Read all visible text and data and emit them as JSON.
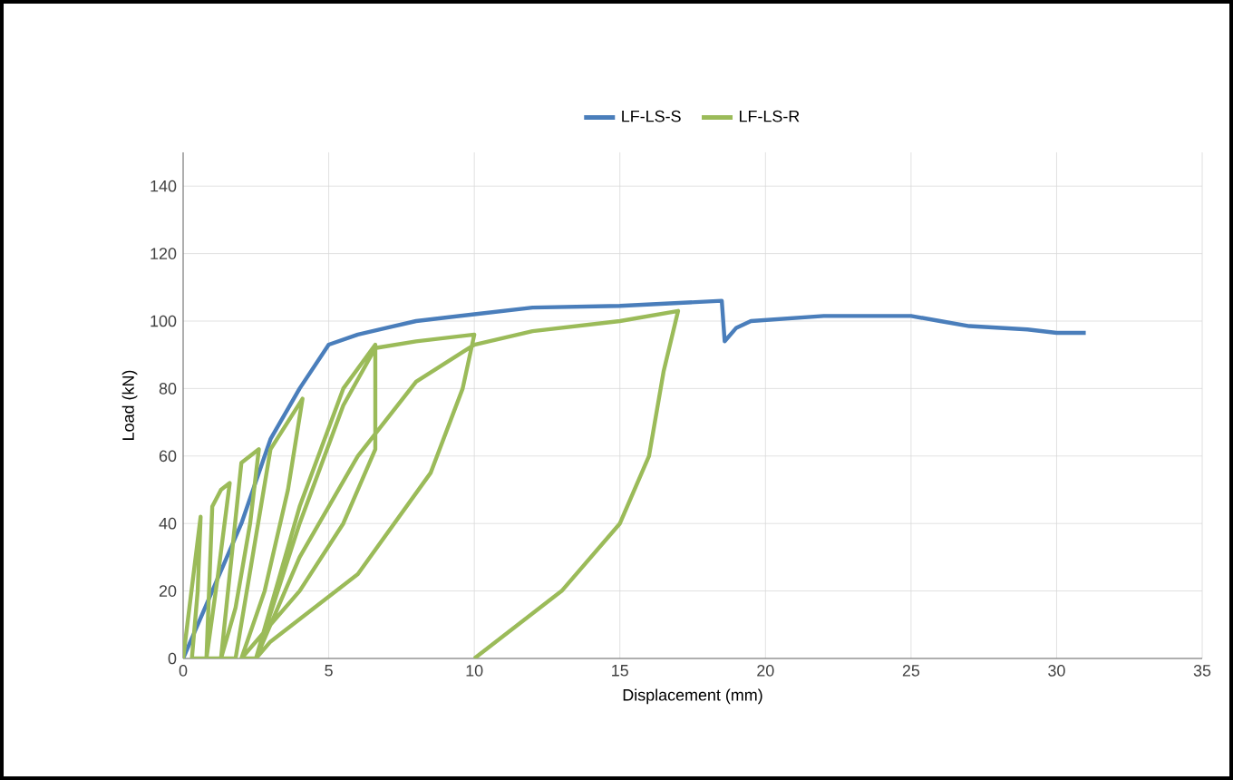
{
  "chart_data": {
    "type": "line",
    "xlabel": "Displacement (mm)",
    "ylabel": "Load (kN)",
    "xlim": [
      0,
      35
    ],
    "ylim": [
      0,
      150
    ],
    "xticks": [
      0,
      5,
      10,
      15,
      20,
      25,
      30,
      35
    ],
    "yticks": [
      0,
      20,
      40,
      60,
      80,
      100,
      120,
      140
    ],
    "grid": true,
    "legend": "top",
    "marker": "none",
    "line_style": "solid",
    "series": [
      {
        "name": "LF-LS-S",
        "color": "#4a7ebb",
        "x": [
          0,
          1,
          2,
          3,
          4,
          5,
          6,
          7,
          8,
          10,
          12,
          15,
          18.5,
          18.6,
          19,
          19.5,
          22,
          25,
          26,
          27,
          29,
          30,
          31
        ],
        "values": [
          0,
          20,
          40,
          65,
          80,
          93,
          96,
          98,
          100,
          102,
          104,
          104.5,
          106,
          94,
          98,
          100,
          101.5,
          101.5,
          100,
          98.5,
          97.5,
          96.5,
          96.5
        ]
      },
      {
        "name": "LF-LS-R",
        "color": "#9bbb59",
        "x": [
          0,
          0.6,
          0.5,
          0.3,
          0.8,
          1.0,
          1.3,
          1.6,
          1.2,
          0.8,
          1.3,
          2.0,
          2.6,
          2.3,
          1.8,
          1.3,
          1.8,
          3.0,
          4.1,
          3.6,
          2.8,
          2.0,
          2.5,
          4,
          5.5,
          6.6,
          6.6,
          5.5,
          4,
          2,
          2.5,
          4,
          5.5,
          6.6,
          8,
          10,
          9.6,
          8.5,
          6,
          3,
          2.5,
          4,
          6,
          8,
          10,
          12,
          15,
          17,
          16.5,
          16,
          15,
          13,
          10
        ],
        "values": [
          0,
          42,
          20,
          0,
          0,
          45,
          50,
          52,
          25,
          0,
          0,
          58,
          62,
          40,
          15,
          0,
          0,
          62,
          77,
          50,
          20,
          0,
          0,
          45,
          80,
          93,
          62,
          40,
          20,
          0,
          0,
          40,
          75,
          92,
          94,
          96,
          80,
          55,
          25,
          5,
          0,
          30,
          60,
          82,
          93,
          97,
          100,
          103,
          85,
          60,
          40,
          20,
          0
        ]
      }
    ]
  }
}
